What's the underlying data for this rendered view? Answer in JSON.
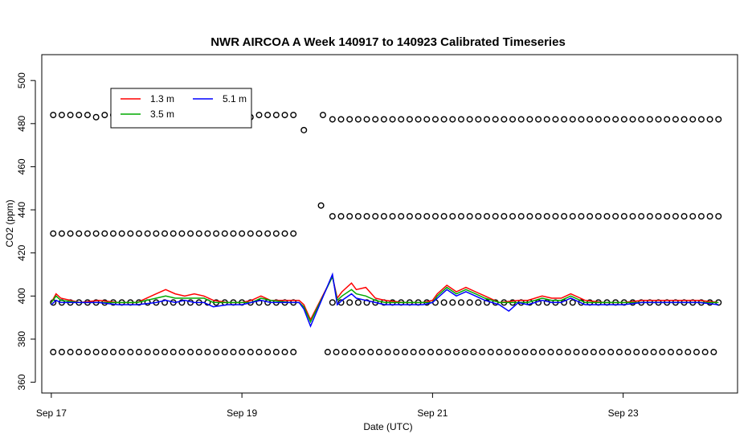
{
  "chart_data": {
    "type": "line",
    "title": "NWR AIRCOA A  Week 140917 to 140923  Calibrated Timeseries",
    "xlabel": "Date (UTC)",
    "ylabel": "CO2 (ppm)",
    "x_unit": "days (Sep 2014)",
    "xlim": [
      16.9,
      24.2
    ],
    "ylim": [
      355,
      512
    ],
    "x_ticks": [
      {
        "value": 17,
        "label": "Sep 17"
      },
      {
        "value": 19,
        "label": "Sep 19"
      },
      {
        "value": 21,
        "label": "Sep 21"
      },
      {
        "value": 23,
        "label": "Sep 23"
      }
    ],
    "y_ticks": [
      360,
      380,
      400,
      420,
      440,
      460,
      480,
      500
    ],
    "legend": {
      "position": "top-left",
      "entries": [
        {
          "name": "1.3 m",
          "color": "#ff0000"
        },
        {
          "name": "5.1 m",
          "color": "#0000ff"
        },
        {
          "name": "3.5 m",
          "color": "#00aa00"
        }
      ]
    },
    "series": [
      {
        "name": "1.3 m",
        "color": "#ff0000",
        "points": [
          [
            17.0,
            397
          ],
          [
            17.05,
            401
          ],
          [
            17.1,
            399
          ],
          [
            17.3,
            397
          ],
          [
            17.5,
            398
          ],
          [
            17.7,
            397
          ],
          [
            17.9,
            397
          ],
          [
            18.1,
            401
          ],
          [
            18.2,
            403
          ],
          [
            18.3,
            401
          ],
          [
            18.4,
            400
          ],
          [
            18.5,
            401
          ],
          [
            18.6,
            400
          ],
          [
            18.7,
            398
          ],
          [
            18.85,
            397
          ],
          [
            19.0,
            397
          ],
          [
            19.1,
            398
          ],
          [
            19.2,
            400
          ],
          [
            19.3,
            398
          ],
          [
            19.5,
            398
          ],
          [
            19.6,
            398
          ],
          [
            19.65,
            396
          ],
          [
            19.72,
            389
          ],
          [
            19.95,
            409
          ],
          [
            20.0,
            399
          ],
          [
            20.05,
            402
          ],
          [
            20.15,
            406
          ],
          [
            20.2,
            403
          ],
          [
            20.3,
            404
          ],
          [
            20.4,
            399
          ],
          [
            20.5,
            398
          ],
          [
            20.7,
            397
          ],
          [
            20.9,
            397
          ],
          [
            21.0,
            398
          ],
          [
            21.05,
            401
          ],
          [
            21.15,
            405
          ],
          [
            21.25,
            402
          ],
          [
            21.35,
            404
          ],
          [
            21.45,
            402
          ],
          [
            21.55,
            400
          ],
          [
            21.7,
            397
          ],
          [
            21.9,
            398
          ],
          [
            22.0,
            398
          ],
          [
            22.15,
            400
          ],
          [
            22.25,
            399
          ],
          [
            22.35,
            399
          ],
          [
            22.45,
            401
          ],
          [
            22.6,
            398
          ],
          [
            22.8,
            397
          ],
          [
            23.0,
            397
          ],
          [
            23.2,
            398
          ],
          [
            23.5,
            398
          ],
          [
            23.8,
            398
          ],
          [
            24.0,
            397
          ]
        ]
      },
      {
        "name": "3.5 m",
        "color": "#00aa00",
        "points": [
          [
            17.0,
            397
          ],
          [
            17.05,
            400
          ],
          [
            17.1,
            398
          ],
          [
            17.3,
            397
          ],
          [
            17.5,
            397
          ],
          [
            17.7,
            397
          ],
          [
            17.9,
            397
          ],
          [
            18.1,
            399
          ],
          [
            18.2,
            400
          ],
          [
            18.3,
            399
          ],
          [
            18.4,
            399
          ],
          [
            18.5,
            399
          ],
          [
            18.6,
            399
          ],
          [
            18.7,
            397
          ],
          [
            18.85,
            397
          ],
          [
            19.0,
            397
          ],
          [
            19.1,
            397
          ],
          [
            19.2,
            399
          ],
          [
            19.3,
            398
          ],
          [
            19.5,
            397
          ],
          [
            19.6,
            397
          ],
          [
            19.65,
            395
          ],
          [
            19.72,
            388
          ],
          [
            19.95,
            409
          ],
          [
            20.0,
            398
          ],
          [
            20.05,
            400
          ],
          [
            20.15,
            403
          ],
          [
            20.2,
            401
          ],
          [
            20.3,
            400
          ],
          [
            20.4,
            398
          ],
          [
            20.5,
            397
          ],
          [
            20.7,
            397
          ],
          [
            20.9,
            397
          ],
          [
            21.0,
            397
          ],
          [
            21.05,
            400
          ],
          [
            21.15,
            404
          ],
          [
            21.25,
            401
          ],
          [
            21.35,
            403
          ],
          [
            21.45,
            401
          ],
          [
            21.55,
            399
          ],
          [
            21.7,
            397
          ],
          [
            21.9,
            397
          ],
          [
            22.0,
            397
          ],
          [
            22.15,
            399
          ],
          [
            22.25,
            398
          ],
          [
            22.35,
            398
          ],
          [
            22.45,
            400
          ],
          [
            22.6,
            397
          ],
          [
            22.8,
            397
          ],
          [
            23.0,
            397
          ],
          [
            23.2,
            397
          ],
          [
            23.5,
            397
          ],
          [
            23.8,
            397
          ],
          [
            24.0,
            397
          ]
        ]
      },
      {
        "name": "5.1 m",
        "color": "#0000ff",
        "points": [
          [
            17.0,
            396
          ],
          [
            17.05,
            398
          ],
          [
            17.1,
            397
          ],
          [
            17.3,
            397
          ],
          [
            17.5,
            397
          ],
          [
            17.7,
            396
          ],
          [
            17.9,
            396
          ],
          [
            18.1,
            397
          ],
          [
            18.2,
            398
          ],
          [
            18.3,
            397
          ],
          [
            18.4,
            398
          ],
          [
            18.5,
            397
          ],
          [
            18.6,
            397
          ],
          [
            18.7,
            395
          ],
          [
            18.85,
            396
          ],
          [
            19.0,
            396
          ],
          [
            19.1,
            397
          ],
          [
            19.2,
            398
          ],
          [
            19.3,
            397
          ],
          [
            19.5,
            397
          ],
          [
            19.6,
            397
          ],
          [
            19.65,
            394
          ],
          [
            19.72,
            386
          ],
          [
            19.95,
            410
          ],
          [
            20.0,
            396
          ],
          [
            20.05,
            398
          ],
          [
            20.15,
            401
          ],
          [
            20.2,
            399
          ],
          [
            20.3,
            398
          ],
          [
            20.4,
            397
          ],
          [
            20.5,
            396
          ],
          [
            20.7,
            396
          ],
          [
            20.9,
            396
          ],
          [
            21.0,
            397
          ],
          [
            21.05,
            399
          ],
          [
            21.15,
            403
          ],
          [
            21.25,
            400
          ],
          [
            21.35,
            402
          ],
          [
            21.45,
            400
          ],
          [
            21.55,
            398
          ],
          [
            21.7,
            396
          ],
          [
            21.8,
            393
          ],
          [
            21.9,
            397
          ],
          [
            22.0,
            396
          ],
          [
            22.15,
            398
          ],
          [
            22.25,
            397
          ],
          [
            22.35,
            397
          ],
          [
            22.45,
            399
          ],
          [
            22.6,
            396
          ],
          [
            22.8,
            396
          ],
          [
            23.0,
            396
          ],
          [
            23.2,
            397
          ],
          [
            23.5,
            397
          ],
          [
            23.8,
            397
          ],
          [
            24.0,
            396
          ]
        ]
      }
    ],
    "calibration_points": [
      {
        "level": "high",
        "range": [
          17.02,
          19.55
        ],
        "step": 0.09,
        "values": [
          484,
          484,
          484,
          484,
          484,
          483
        ]
      },
      {
        "level": "high",
        "range": [
          19.65,
          19.65
        ],
        "step": 0.1,
        "values": [
          477
        ]
      },
      {
        "level": "high",
        "range": [
          19.85,
          19.85
        ],
        "step": 0.1,
        "values": [
          484
        ]
      },
      {
        "level": "high",
        "range": [
          19.95,
          24.0
        ],
        "step": 0.09,
        "values": [
          482
        ]
      },
      {
        "level": "mid",
        "range": [
          17.02,
          19.6
        ],
        "step": 0.09,
        "values": [
          429
        ]
      },
      {
        "level": "mid",
        "range": [
          19.83,
          19.83
        ],
        "step": 0.1,
        "values": [
          442
        ]
      },
      {
        "level": "mid",
        "range": [
          19.95,
          24.0
        ],
        "step": 0.09,
        "values": [
          437
        ]
      },
      {
        "level": "ambient",
        "range": [
          17.02,
          19.55
        ],
        "step": 0.09,
        "values": [
          397
        ]
      },
      {
        "level": "ambient",
        "range": [
          19.95,
          24.0
        ],
        "step": 0.09,
        "values": [
          397
        ]
      },
      {
        "level": "low",
        "range": [
          17.02,
          19.55
        ],
        "step": 0.09,
        "values": [
          374
        ]
      },
      {
        "level": "low",
        "range": [
          19.9,
          24.0
        ],
        "step": 0.09,
        "values": [
          374
        ]
      }
    ]
  }
}
